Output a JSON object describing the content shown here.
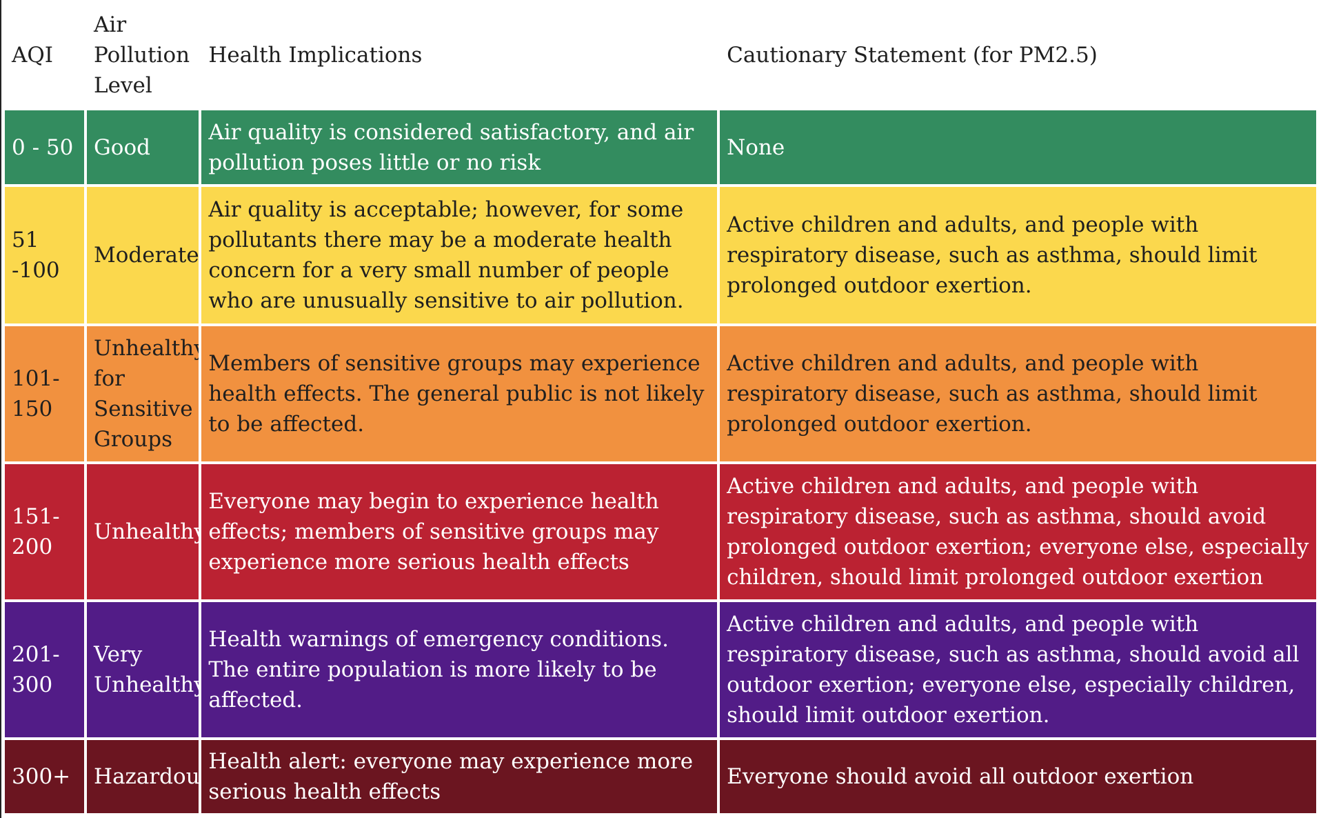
{
  "table": {
    "headers": {
      "aqi": "AQI",
      "level": "Air Pollution Level",
      "health": "Health Implications",
      "caution": "Cautionary Statement (for PM2.5)"
    },
    "rows": [
      {
        "aqi": "0 - 50",
        "level": "Good",
        "health": "Air quality is considered satisfactory, and air pollution poses little or no risk",
        "caution": "None",
        "color": "#338c5f"
      },
      {
        "aqi": "51 -100",
        "level": "Moderate",
        "health": "Air quality is acceptable; however, for some pollutants there may be a moderate health concern for a very small number of people who are unusually sensitive to air pollution.",
        "caution": "Active children and adults, and people with respiratory disease, such as asthma, should limit prolonged outdoor exertion.",
        "color": "#fbd84d"
      },
      {
        "aqi": "101-150",
        "level": "Unhealthy for Sensitive Groups",
        "health": "Members of sensitive groups may experience health effects. The general public is not likely to be affected.",
        "caution": "Active children and adults, and people with respiratory disease, such as asthma, should limit prolonged outdoor exertion.",
        "color": "#f1913f"
      },
      {
        "aqi": "151-200",
        "level": "Unhealthy",
        "health": "Everyone may begin to experience health effects; members of sensitive groups may experience more serious health effects",
        "caution": "Active children and adults, and people with respiratory disease, such as asthma, should avoid prolonged outdoor exertion; everyone else, especially children, should limit prolonged outdoor exertion",
        "color": "#bb2232"
      },
      {
        "aqi": "201-300",
        "level": "Very Unhealthy",
        "health": "Health warnings of emergency conditions. The entire population is more likely to be affected.",
        "caution": "Active children and adults, and people with respiratory disease, such as asthma, should avoid all outdoor exertion; everyone else, especially children, should limit outdoor exertion.",
        "color": "#521c87"
      },
      {
        "aqi": "300+",
        "level": "Hazardous",
        "health": "Health alert: everyone may experience more serious health effects",
        "caution": "Everyone should avoid all outdoor exertion",
        "color": "#6b1520"
      }
    ]
  }
}
